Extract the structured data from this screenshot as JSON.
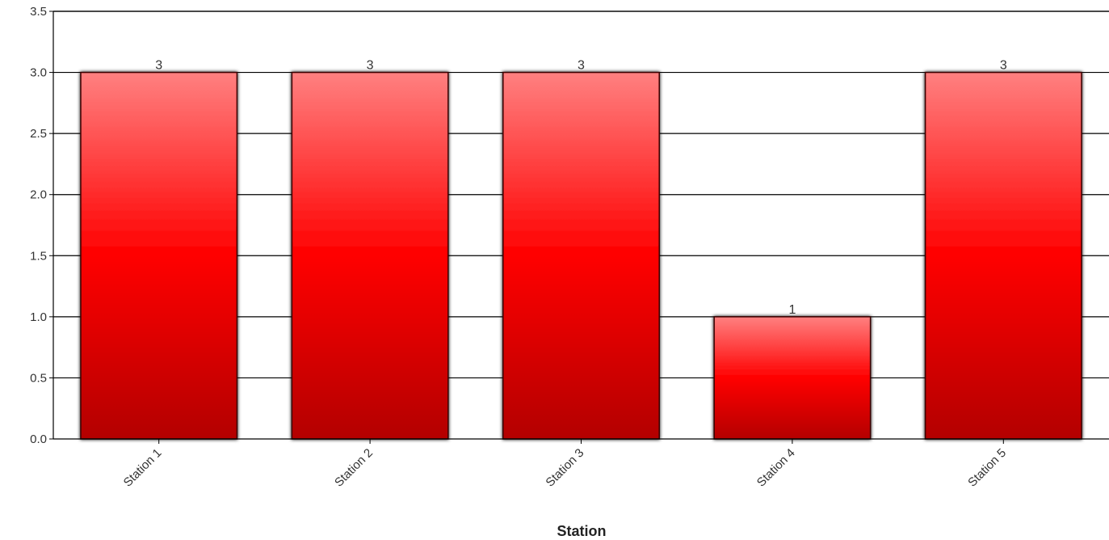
{
  "chart_data": {
    "type": "bar",
    "categories": [
      "Station 1",
      "Station 2",
      "Station 3",
      "Station 4",
      "Station 5"
    ],
    "values": [
      3,
      3,
      3,
      1,
      3
    ],
    "data_labels": [
      "3",
      "3",
      "3",
      "1",
      "3"
    ],
    "xlabel": "Station",
    "ylabel": "",
    "ylim": [
      0,
      3.5
    ],
    "yticks": [
      0,
      0.5,
      1,
      1.5,
      2,
      2.5,
      3,
      3.5
    ],
    "ytick_labels": [
      "0.0",
      "0.5",
      "1.0",
      "1.5",
      "2.0",
      "2.5",
      "3.0",
      "3.5"
    ],
    "grid": true,
    "legend": "none",
    "colors": {
      "bar_top": "#ff8080",
      "bar_mid": "#ff0000",
      "bar_bottom": "#b30000",
      "bar_stroke": "#3a0000",
      "grid": "#000000"
    }
  }
}
